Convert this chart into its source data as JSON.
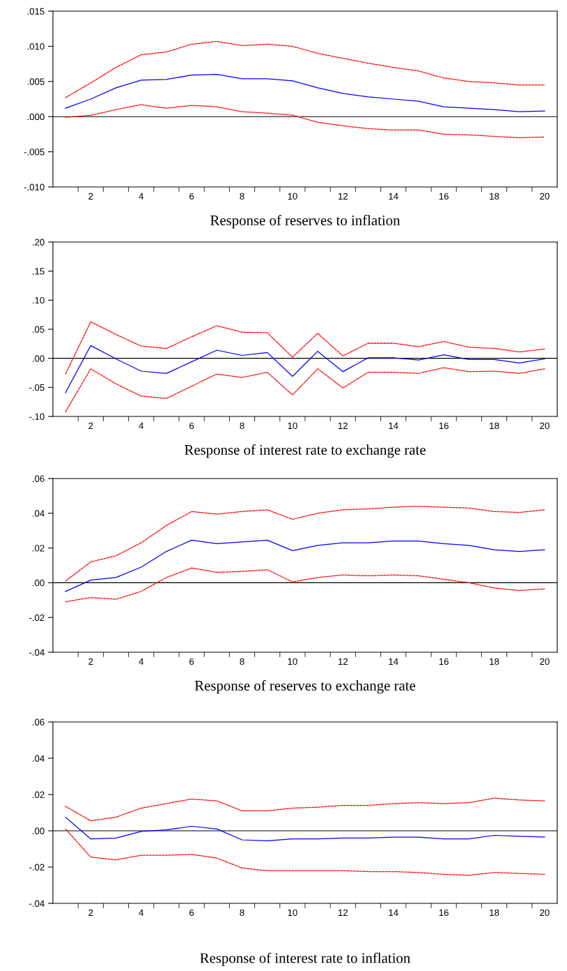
{
  "chart_data": [
    {
      "type": "line",
      "xlabel": "Response of reserves to inflation",
      "categories": [
        null,
        "2",
        null,
        "4",
        null,
        "6",
        null,
        "8",
        null,
        "10",
        null,
        "12",
        null,
        "14",
        null,
        "16",
        null,
        "18",
        null,
        "20"
      ],
      "ylim": [
        -0.01,
        0.015
      ],
      "yticks": [
        {
          "value": -0.01,
          "label": "-.010"
        },
        {
          "value": -0.005,
          "label": "-.005"
        },
        {
          "value": 0.0,
          "label": ".000"
        },
        {
          "value": 0.005,
          "label": ".005"
        },
        {
          "value": 0.01,
          "label": ".010"
        },
        {
          "value": 0.015,
          "label": ".015"
        }
      ],
      "grid": false,
      "ref_lines": [
        {
          "axis": "y",
          "value": 0,
          "color": "#000000"
        }
      ],
      "series": [
        {
          "color": "#0000ff",
          "line_style": "solid",
          "values": [
            0.0012,
            0.0025,
            0.0041,
            0.0052,
            0.0053,
            0.0059,
            0.006,
            0.0054,
            0.0054,
            0.0051,
            0.0041,
            0.0033,
            0.0028,
            0.0025,
            0.0022,
            0.0014,
            0.0012,
            0.001,
            0.0007,
            0.0008
          ]
        },
        {
          "color": "#ff0000",
          "line_style": "dashed",
          "values": [
            0.0027,
            0.0048,
            0.007,
            0.0088,
            0.0092,
            0.0103,
            0.0107,
            0.0101,
            0.0103,
            0.01,
            0.009,
            0.0083,
            0.0076,
            0.007,
            0.0065,
            0.0055,
            0.005,
            0.0048,
            0.0045,
            0.0045
          ]
        },
        {
          "color": "#ff0000",
          "line_style": "dashed",
          "values": [
            -0.0001,
            0.0002,
            0.001,
            0.0017,
            0.0012,
            0.0016,
            0.0014,
            0.0007,
            0.0005,
            0.0002,
            -0.0008,
            -0.0013,
            -0.0017,
            -0.0019,
            -0.0019,
            -0.0025,
            -0.0026,
            -0.0028,
            -0.003,
            -0.0029
          ]
        }
      ]
    },
    {
      "type": "line",
      "xlabel": "Response of interest rate to exchange rate",
      "categories": [
        null,
        "2",
        null,
        "4",
        null,
        "6",
        null,
        "8",
        null,
        "10",
        null,
        "12",
        null,
        "14",
        null,
        "16",
        null,
        "18",
        null,
        "20"
      ],
      "ylim": [
        -0.1,
        0.2
      ],
      "yticks": [
        {
          "value": -0.1,
          "label": "-.10"
        },
        {
          "value": -0.05,
          "label": "-.05"
        },
        {
          "value": 0.0,
          "label": ".00"
        },
        {
          "value": 0.05,
          "label": ".05"
        },
        {
          "value": 0.1,
          "label": ".10"
        },
        {
          "value": 0.15,
          "label": ".15"
        },
        {
          "value": 0.2,
          "label": ".20"
        }
      ],
      "grid": false,
      "ref_lines": [
        {
          "axis": "y",
          "value": 0,
          "color": "#000000"
        }
      ],
      "series": [
        {
          "color": "#0000ff",
          "line_style": "solid",
          "values": [
            -0.059,
            0.022,
            -0.001,
            -0.022,
            -0.026,
            -0.006,
            0.014,
            0.005,
            0.01,
            -0.031,
            0.012,
            -0.023,
            0.001,
            0.001,
            -0.003,
            0.006,
            -0.002,
            -0.002,
            -0.008,
            -0.001
          ]
        },
        {
          "color": "#ff0000",
          "line_style": "dashed",
          "values": [
            -0.027,
            0.063,
            0.041,
            0.021,
            0.017,
            0.037,
            0.056,
            0.045,
            0.044,
            0.002,
            0.043,
            0.004,
            0.026,
            0.026,
            0.02,
            0.029,
            0.019,
            0.017,
            0.011,
            0.016
          ]
        },
        {
          "color": "#ff0000",
          "line_style": "dashed",
          "values": [
            -0.092,
            -0.018,
            -0.044,
            -0.065,
            -0.069,
            -0.048,
            -0.027,
            -0.033,
            -0.024,
            -0.063,
            -0.018,
            -0.051,
            -0.024,
            -0.024,
            -0.026,
            -0.016,
            -0.023,
            -0.022,
            -0.026,
            -0.018
          ]
        }
      ]
    },
    {
      "type": "line",
      "xlabel": "Response of reserves to exchange rate",
      "categories": [
        null,
        "2",
        null,
        "4",
        null,
        "6",
        null,
        "8",
        null,
        "10",
        null,
        "12",
        null,
        "14",
        null,
        "16",
        null,
        "18",
        null,
        "20"
      ],
      "ylim": [
        -0.04,
        0.06
      ],
      "yticks": [
        {
          "value": -0.04,
          "label": "-.04"
        },
        {
          "value": -0.02,
          "label": "-.02"
        },
        {
          "value": 0.0,
          "label": ".00"
        },
        {
          "value": 0.02,
          "label": ".02"
        },
        {
          "value": 0.04,
          "label": ".04"
        },
        {
          "value": 0.06,
          "label": ".06"
        }
      ],
      "grid": false,
      "ref_lines": [
        {
          "axis": "y",
          "value": 0,
          "color": "#000000"
        }
      ],
      "series": [
        {
          "color": "#0000ff",
          "line_style": "solid",
          "values": [
            -0.005,
            0.0015,
            0.003,
            0.009,
            0.018,
            0.0245,
            0.0225,
            0.0235,
            0.0245,
            0.0185,
            0.0215,
            0.023,
            0.023,
            0.024,
            0.024,
            0.0225,
            0.0215,
            0.019,
            0.018,
            0.019
          ]
        },
        {
          "color": "#ff0000",
          "line_style": "dashed",
          "values": [
            0.001,
            0.012,
            0.0155,
            0.023,
            0.033,
            0.041,
            0.0395,
            0.041,
            0.042,
            0.0365,
            0.04,
            0.042,
            0.0425,
            0.0435,
            0.044,
            0.0435,
            0.043,
            0.041,
            0.0405,
            0.042
          ]
        },
        {
          "color": "#ff0000",
          "line_style": "dashed",
          "values": [
            -0.011,
            -0.0085,
            -0.0095,
            -0.005,
            0.003,
            0.0085,
            0.006,
            0.0065,
            0.0075,
            0.0005,
            0.003,
            0.0045,
            0.004,
            0.0045,
            0.004,
            0.002,
            0.0,
            -0.003,
            -0.0045,
            -0.0035
          ]
        }
      ]
    },
    {
      "type": "line",
      "xlabel": "Response of interest rate to inflation",
      "categories": [
        null,
        "2",
        null,
        "4",
        null,
        "6",
        null,
        "8",
        null,
        "10",
        null,
        "12",
        null,
        "14",
        null,
        "16",
        null,
        "18",
        null,
        "20"
      ],
      "ylim": [
        -0.04,
        0.06
      ],
      "yticks": [
        {
          "value": -0.04,
          "label": "-.04"
        },
        {
          "value": -0.02,
          "label": "-.02"
        },
        {
          "value": 0.0,
          "label": ".00"
        },
        {
          "value": 0.02,
          "label": ".02"
        },
        {
          "value": 0.04,
          "label": ".04"
        },
        {
          "value": 0.06,
          "label": ".06"
        }
      ],
      "grid": false,
      "ref_lines": [
        {
          "axis": "y",
          "value": 0,
          "color": "#000000"
        }
      ],
      "series": [
        {
          "color": "#0000ff",
          "line_style": "solid",
          "values": [
            0.0075,
            -0.0045,
            -0.004,
            -0.0003,
            0.0005,
            0.0025,
            0.001,
            -0.005,
            -0.0055,
            -0.0045,
            -0.0045,
            -0.004,
            -0.004,
            -0.0035,
            -0.0035,
            -0.0045,
            -0.0045,
            -0.0025,
            -0.003,
            -0.0035
          ]
        },
        {
          "color": "#ff0000",
          "line_style": "dashed",
          "values": [
            0.0135,
            0.0055,
            0.0075,
            0.0125,
            0.015,
            0.0175,
            0.0165,
            0.011,
            0.011,
            0.0125,
            0.013,
            0.014,
            0.014,
            0.015,
            0.0155,
            0.015,
            0.0155,
            0.018,
            0.017,
            0.0165
          ]
        },
        {
          "color": "#ff0000",
          "line_style": "dashed",
          "values": [
            0.001,
            -0.0145,
            -0.016,
            -0.0135,
            -0.0135,
            -0.013,
            -0.015,
            -0.0205,
            -0.022,
            -0.022,
            -0.022,
            -0.022,
            -0.0225,
            -0.0225,
            -0.023,
            -0.024,
            -0.0245,
            -0.023,
            -0.0235,
            -0.024
          ]
        }
      ]
    }
  ]
}
